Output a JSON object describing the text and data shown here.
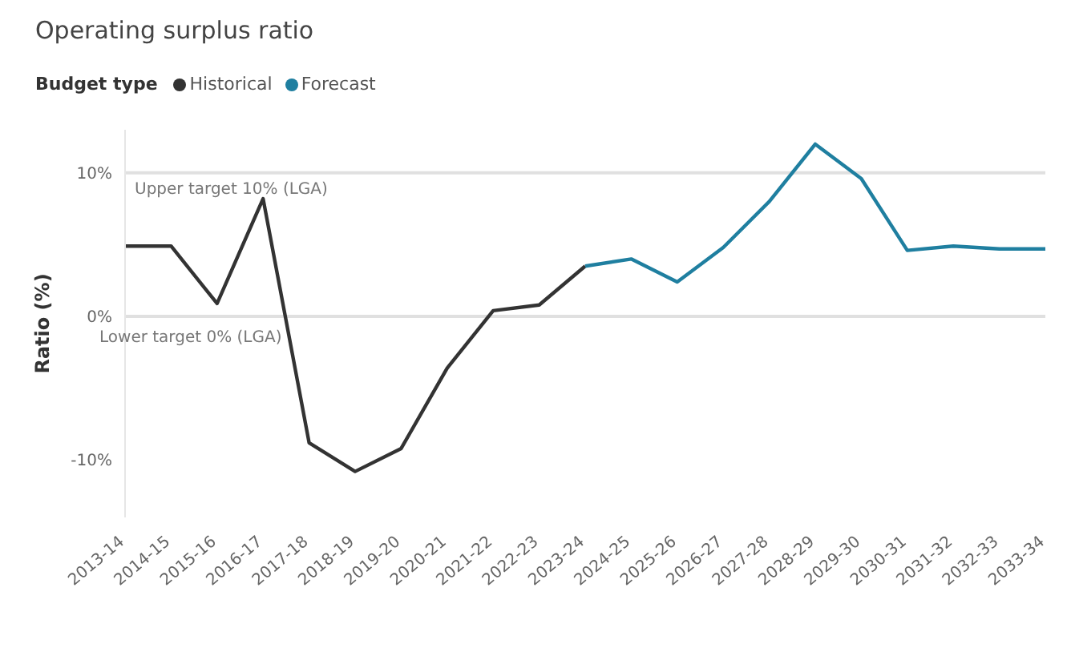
{
  "chart_data": {
    "type": "line",
    "title": "Operating surplus ratio",
    "ylabel": "Ratio (%)",
    "legend_title": "Budget type",
    "legend": "top left",
    "categories": [
      "2013-14",
      "2014-15",
      "2015-16",
      "2016-17",
      "2017-18",
      "2018-19",
      "2019-20",
      "2020-21",
      "2021-22",
      "2022-23",
      "2023-24",
      "2024-25",
      "2025-26",
      "2026-27",
      "2027-28",
      "2028-29",
      "2029-30",
      "2030-31",
      "2031-32",
      "2032-33",
      "2033-34"
    ],
    "series": [
      {
        "name": "Historical",
        "color": "#333333",
        "values": [
          4.9,
          4.9,
          0.9,
          8.2,
          -8.8,
          -10.8,
          -9.2,
          -3.6,
          0.4,
          0.8,
          3.5,
          null,
          null,
          null,
          null,
          null,
          null,
          null,
          null,
          null,
          null
        ]
      },
      {
        "name": "Forecast",
        "color": "#1f7fa0",
        "values": [
          null,
          null,
          null,
          null,
          null,
          null,
          null,
          null,
          null,
          null,
          3.5,
          4.0,
          2.4,
          4.8,
          8.0,
          12.0,
          9.6,
          4.6,
          4.9,
          4.7,
          4.7
        ]
      }
    ],
    "ylim": [
      -14,
      13
    ],
    "yticks": [
      {
        "value": -10,
        "label": "-10%"
      },
      {
        "value": 0,
        "label": "0%"
      },
      {
        "value": 10,
        "label": "10%"
      }
    ],
    "ref_lines": [
      {
        "axis": "y",
        "value": 10,
        "label": "Upper target 10% (LGA)",
        "color": "#e0e0e0"
      },
      {
        "axis": "y",
        "value": 0,
        "label": "Lower target 0% (LGA)",
        "color": "#e0e0e0"
      }
    ],
    "marker": "none",
    "line_style": "solid"
  }
}
